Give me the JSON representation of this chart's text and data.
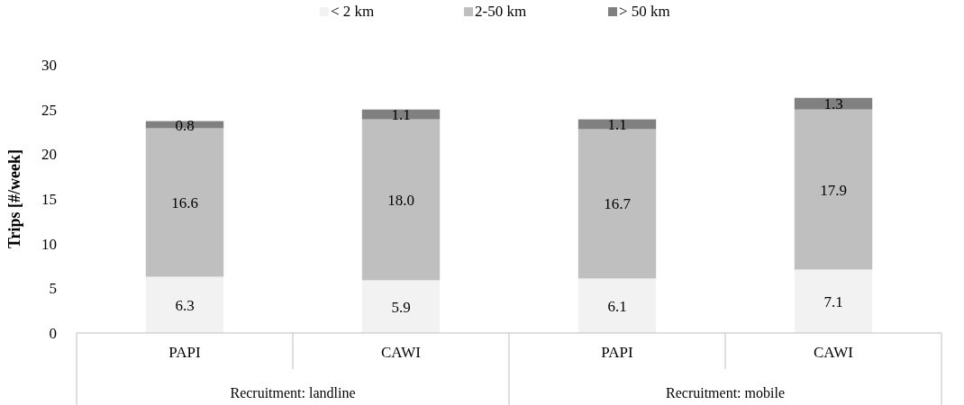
{
  "chart_data": {
    "type": "bar",
    "stacked": true,
    "ylabel": "Trips [#/week]",
    "categories": [
      "PAPI",
      "CAWI",
      "PAPI",
      "CAWI"
    ],
    "series": [
      {
        "name": "< 2 km",
        "color": "#f2f2f2",
        "values": [
          6.3,
          5.9,
          6.1,
          7.1
        ],
        "value_labels": [
          "6.3",
          "5.9",
          "6.1",
          "7.1"
        ]
      },
      {
        "name": "2-50 km",
        "color": "#bfbfbf",
        "values": [
          16.6,
          18.0,
          16.7,
          17.9
        ],
        "value_labels": [
          "16.6",
          "18.0",
          "16.7",
          "17.9"
        ]
      },
      {
        "name": "> 50 km",
        "color": "#808080",
        "values": [
          0.8,
          1.1,
          1.1,
          1.3
        ],
        "value_labels": [
          "0.8",
          "1.1",
          "1.1",
          "1.3"
        ]
      }
    ],
    "ylim": [
      0,
      30
    ],
    "yticks": [
      0,
      5,
      10,
      15,
      20,
      25,
      30
    ],
    "grid": false,
    "legend": "top",
    "annotations": [
      "Recruitment: landline",
      "Recruitment: mobile"
    ]
  }
}
